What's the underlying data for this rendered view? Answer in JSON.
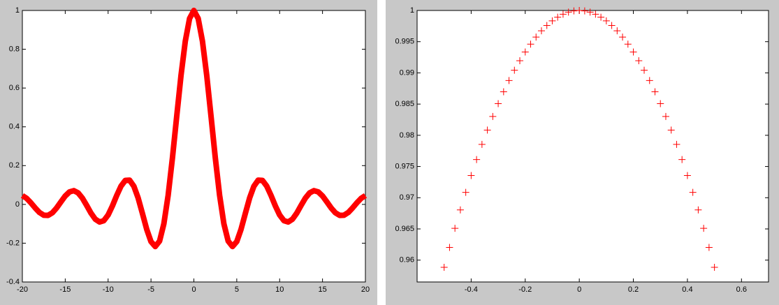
{
  "chart_data": [
    {
      "type": "line",
      "x": [
        -20,
        -19.5,
        -19,
        -18.5,
        -18,
        -17.5,
        -17,
        -16.5,
        -16,
        -15.5,
        -15,
        -14.5,
        -14,
        -13.5,
        -13,
        -12.5,
        -12,
        -11.5,
        -11,
        -10.5,
        -10,
        -9.5,
        -9,
        -8.5,
        -8,
        -7.5,
        -7,
        -6.5,
        -6,
        -5.5,
        -5,
        -4.5,
        -4,
        -3.5,
        -3,
        -2.5,
        -2,
        -1.5,
        -1,
        -0.5,
        0,
        0.5,
        1,
        1.5,
        2,
        2.5,
        3,
        3.5,
        4,
        4.5,
        5,
        5.5,
        6,
        6.5,
        7,
        7.5,
        8,
        8.5,
        9,
        9.5,
        10,
        10.5,
        11,
        11.5,
        12,
        12.5,
        13,
        13.5,
        14,
        14.5,
        15,
        15.5,
        16,
        16.5,
        17,
        17.5,
        18,
        18.5,
        19,
        19.5,
        20
      ],
      "series": [
        {
          "color": "#ff0000",
          "values": [
            0.0456,
            0.0311,
            0.0079,
            -0.0183,
            -0.0417,
            -0.056,
            -0.0566,
            -0.0432,
            -0.018,
            0.0133,
            0.0434,
            0.0645,
            0.0708,
            0.0595,
            0.0323,
            -0.0053,
            -0.0447,
            -0.0761,
            -0.0909,
            -0.0838,
            -0.0544,
            -0.0079,
            0.0458,
            0.0939,
            0.1237,
            0.1251,
            0.0939,
            0.0331,
            -0.0466,
            -0.1283,
            -0.1918,
            -0.2172,
            -0.1892,
            -0.1002,
            0.047,
            0.2394,
            0.4546,
            0.665,
            0.8415,
            0.9589,
            1,
            0.9589,
            0.8415,
            0.665,
            0.4546,
            0.2394,
            0.047,
            -0.1002,
            -0.1892,
            -0.2172,
            -0.1918,
            -0.1283,
            -0.0466,
            0.0331,
            0.0939,
            0.1251,
            0.1237,
            0.0939,
            0.0458,
            -0.0079,
            -0.0544,
            -0.0838,
            -0.0909,
            -0.0761,
            -0.0447,
            -0.0053,
            0.0323,
            0.0595,
            0.0708,
            0.0645,
            0.0434,
            0.0133,
            -0.018,
            -0.0432,
            -0.0566,
            -0.056,
            -0.0417,
            -0.0183,
            0.0079,
            0.0311,
            0.0456
          ]
        }
      ],
      "xlim": [
        -20,
        20
      ],
      "xticks": [
        -20,
        -15,
        -10,
        -5,
        0,
        5,
        10,
        15,
        20
      ],
      "ylim": [
        -0.4,
        1
      ],
      "yticks": [
        -0.4,
        -0.2,
        0,
        0.2,
        0.4,
        0.6,
        0.8,
        1
      ]
    },
    {
      "type": "scatter",
      "marker": "+",
      "x": [
        -0.5,
        -0.48,
        -0.46,
        -0.44,
        -0.42,
        -0.4,
        -0.38,
        -0.36,
        -0.34,
        -0.32,
        -0.3,
        -0.28,
        -0.26,
        -0.24,
        -0.22,
        -0.2,
        -0.18,
        -0.16,
        -0.14,
        -0.12,
        -0.1,
        -0.08,
        -0.06,
        -0.04,
        -0.02,
        0,
        0.02,
        0.04,
        0.06,
        0.08,
        0.1,
        0.12,
        0.14,
        0.16,
        0.18,
        0.2,
        0.22,
        0.24,
        0.26,
        0.28,
        0.3,
        0.32,
        0.34,
        0.36,
        0.38,
        0.4,
        0.42,
        0.44,
        0.46,
        0.48,
        0.5
      ],
      "series": [
        {
          "color": "#ff0000",
          "values": [
            0.95885,
            0.96204,
            0.9651,
            0.96804,
            0.97086,
            0.97355,
            0.97611,
            0.97854,
            0.98084,
            0.98302,
            0.98507,
            0.98697,
            0.98877,
            0.99043,
            0.99195,
            0.99335,
            0.99461,
            0.99574,
            0.99674,
            0.9976,
            0.99833,
            0.99893,
            0.9994,
            0.99973,
            0.99993,
            1,
            0.99993,
            0.99973,
            0.9994,
            0.99893,
            0.99833,
            0.9976,
            0.99674,
            0.99574,
            0.99461,
            0.99335,
            0.99195,
            0.99043,
            0.98877,
            0.98697,
            0.98507,
            0.98302,
            0.98084,
            0.97854,
            0.97611,
            0.97355,
            0.97086,
            0.96804,
            0.9651,
            0.96204,
            0.95885
          ]
        }
      ],
      "xlim": [
        -0.6,
        0.7
      ],
      "xticks": [
        -0.4,
        -0.2,
        0,
        0.2,
        0.4,
        0.6
      ],
      "ylim": [
        0.9565,
        1
      ],
      "yticks": [
        0.96,
        0.965,
        0.97,
        0.975,
        0.98,
        0.985,
        0.99,
        0.995,
        1
      ]
    }
  ]
}
